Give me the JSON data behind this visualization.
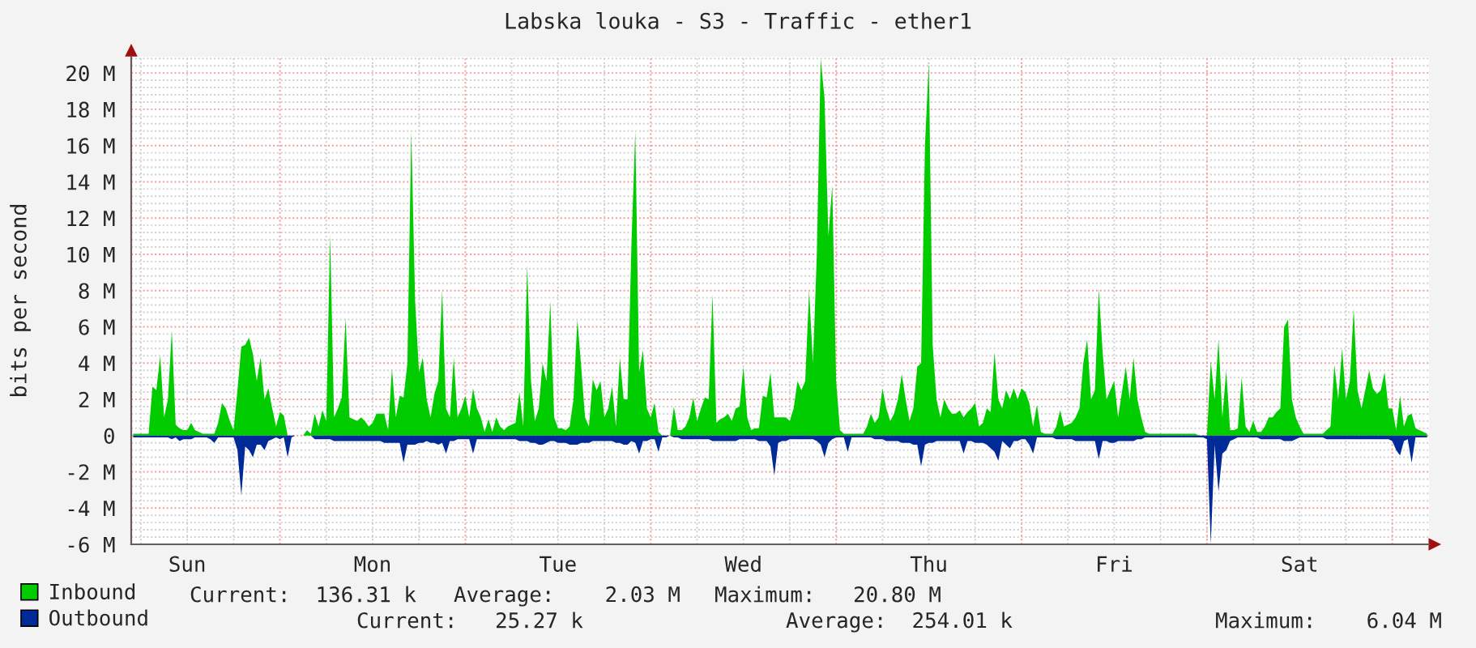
{
  "chart_data": {
    "type": "area",
    "title": "Labska louka - S3 - Traffic - ether1",
    "ylabel": "bits per second",
    "categories": [
      null,
      null,
      null,
      null,
      null,
      null,
      null,
      null,
      null,
      null,
      null,
      null,
      null,
      null,
      "Sun",
      null,
      null,
      null,
      null,
      null,
      null,
      null,
      null,
      null,
      null,
      null,
      null,
      null,
      null,
      null,
      null,
      null,
      null,
      null,
      null,
      null,
      null,
      null,
      null,
      null,
      null,
      null,
      null,
      null,
      null,
      null,
      null,
      null,
      null,
      null,
      null,
      null,
      null,
      null,
      null,
      null,
      null,
      null,
      null,
      null,
      null,
      null,
      "Mon",
      null,
      null,
      null,
      null,
      null,
      null,
      null,
      null,
      null,
      null,
      null,
      null,
      null,
      null,
      null,
      null,
      null,
      null,
      null,
      null,
      null,
      null,
      null,
      null,
      null,
      null,
      null,
      null,
      null,
      null,
      null,
      null,
      null,
      null,
      null,
      null,
      null,
      null,
      null,
      null,
      null,
      null,
      null,
      null,
      null,
      null,
      null,
      "Tue",
      null,
      null,
      null,
      null,
      null,
      null,
      null,
      null,
      null,
      null,
      null,
      null,
      null,
      null,
      null,
      null,
      null,
      null,
      null,
      null,
      null,
      null,
      null,
      null,
      null,
      null,
      null,
      null,
      null,
      null,
      null,
      null,
      null,
      null,
      null,
      null,
      null,
      null,
      null,
      null,
      null,
      null,
      null,
      null,
      null,
      null,
      null,
      "Wed",
      null,
      null,
      null,
      null,
      null,
      null,
      null,
      null,
      null,
      null,
      null,
      null,
      null,
      null,
      null,
      null,
      null,
      null,
      null,
      null,
      null,
      null,
      null,
      null,
      null,
      null,
      null,
      null,
      null,
      null,
      null,
      null,
      null,
      null,
      null,
      null,
      null,
      null,
      null,
      null,
      null,
      null,
      null,
      null,
      null,
      null,
      null,
      "Thu",
      null,
      null,
      null,
      null,
      null,
      null,
      null,
      null,
      null,
      null,
      null,
      null,
      null,
      null,
      null,
      null,
      null,
      null,
      null,
      null,
      null,
      null,
      null,
      null,
      null,
      null,
      null,
      null,
      null,
      null,
      null,
      null,
      null,
      null,
      null,
      null,
      null,
      null,
      null,
      null,
      null,
      null,
      null,
      null,
      null,
      null,
      null,
      "Fri",
      null,
      null,
      null,
      null,
      null,
      null,
      null,
      null,
      null,
      null,
      null,
      null,
      null,
      null,
      null,
      null,
      null,
      null,
      null,
      null,
      null,
      null,
      null,
      null,
      null,
      null,
      null,
      null,
      null,
      null,
      null,
      null,
      null,
      null,
      null,
      null,
      null,
      null,
      null,
      null,
      null,
      null,
      null,
      null,
      null,
      null,
      null,
      "Sat",
      null,
      null,
      null,
      null,
      null,
      null,
      null,
      null,
      null,
      null,
      null,
      null,
      null,
      null,
      null,
      null,
      null,
      null,
      null,
      null,
      null,
      null,
      null,
      null,
      null,
      null,
      null,
      null,
      null,
      null,
      null,
      null,
      null
    ],
    "ylim": [
      -6,
      20.9
    ],
    "yticks": [
      {
        "value": -6,
        "label": "-6 M"
      },
      {
        "value": -5.6,
        "label": null
      },
      {
        "value": -5.2,
        "label": null
      },
      {
        "value": -4.8,
        "label": null
      },
      {
        "value": -4.4,
        "label": null
      },
      {
        "value": -4,
        "label": "-4 M"
      },
      {
        "value": -3.6,
        "label": null
      },
      {
        "value": -3.2,
        "label": null
      },
      {
        "value": -2.8,
        "label": null
      },
      {
        "value": -2.4,
        "label": null
      },
      {
        "value": -2,
        "label": "-2 M"
      },
      {
        "value": -1.6,
        "label": null
      },
      {
        "value": -1.2,
        "label": null
      },
      {
        "value": -0.8,
        "label": null
      },
      {
        "value": -0.4,
        "label": null
      },
      {
        "value": 0,
        "label": "0"
      },
      {
        "value": 0.4,
        "label": null
      },
      {
        "value": 0.8,
        "label": null
      },
      {
        "value": 1.2,
        "label": null
      },
      {
        "value": 1.6,
        "label": null
      },
      {
        "value": 2,
        "label": "2 M"
      },
      {
        "value": 2.4,
        "label": null
      },
      {
        "value": 2.8,
        "label": null
      },
      {
        "value": 3.2,
        "label": null
      },
      {
        "value": 3.6,
        "label": null
      },
      {
        "value": 4,
        "label": "4 M"
      },
      {
        "value": 4.4,
        "label": null
      },
      {
        "value": 4.8,
        "label": null
      },
      {
        "value": 5.2,
        "label": null
      },
      {
        "value": 5.6,
        "label": null
      },
      {
        "value": 6,
        "label": "6 M"
      },
      {
        "value": 6.4,
        "label": null
      },
      {
        "value": 6.8,
        "label": null
      },
      {
        "value": 7.2,
        "label": null
      },
      {
        "value": 7.6,
        "label": null
      },
      {
        "value": 8,
        "label": "8 M"
      },
      {
        "value": 8.4,
        "label": null
      },
      {
        "value": 8.8,
        "label": null
      },
      {
        "value": 9.2,
        "label": null
      },
      {
        "value": 9.6,
        "label": null
      },
      {
        "value": 10,
        "label": "10 M"
      },
      {
        "value": 10.4,
        "label": null
      },
      {
        "value": 10.8,
        "label": null
      },
      {
        "value": 11.2,
        "label": null
      },
      {
        "value": 11.6,
        "label": null
      },
      {
        "value": 12,
        "label": "12 M"
      },
      {
        "value": 12.4,
        "label": null
      },
      {
        "value": 12.8,
        "label": null
      },
      {
        "value": 13.2,
        "label": null
      },
      {
        "value": 13.6,
        "label": null
      },
      {
        "value": 14,
        "label": "14 M"
      },
      {
        "value": 14.4,
        "label": null
      },
      {
        "value": 14.8,
        "label": null
      },
      {
        "value": 15.2,
        "label": null
      },
      {
        "value": 15.6,
        "label": null
      },
      {
        "value": 16,
        "label": "16 M"
      },
      {
        "value": 16.4,
        "label": null
      },
      {
        "value": 16.8,
        "label": null
      },
      {
        "value": 17.2,
        "label": null
      },
      {
        "value": 17.6,
        "label": null
      },
      {
        "value": 18,
        "label": "18 M"
      },
      {
        "value": 18.4,
        "label": null
      },
      {
        "value": 18.8,
        "label": null
      },
      {
        "value": 19.2,
        "label": null
      },
      {
        "value": 19.6,
        "label": null
      },
      {
        "value": 20,
        "label": "20 M"
      },
      {
        "value": 20.4,
        "label": null
      },
      {
        "value": 20.8,
        "label": null
      }
    ],
    "grid": true,
    "legend": "bottom",
    "series": [
      {
        "name": "Inbound",
        "color": "#00cc00",
        "values": [
          0.1,
          0.1,
          0.1,
          0.1,
          0.1,
          2.7,
          2.5,
          4.4,
          1.0,
          2.0,
          5.8,
          0.6,
          0.4,
          0.3,
          0.3,
          0.7,
          0.3,
          0.2,
          0.1,
          0.1,
          0.1,
          0.1,
          0.7,
          1.8,
          1.5,
          0.8,
          0.3,
          2.5,
          4.9,
          5.0,
          5.4,
          4.5,
          3.0,
          4.3,
          2.0,
          2.6,
          1.5,
          0.5,
          1.3,
          1.1,
          0.0,
          0.0,
          0.0,
          0.0,
          0.0,
          0.3,
          0.1,
          1.2,
          0.5,
          1.4,
          0.8,
          11.1,
          1.0,
          1.5,
          2.1,
          6.5,
          1.0,
          0.9,
          0.8,
          1.0,
          0.8,
          0.5,
          0.7,
          1.2,
          1.2,
          1.2,
          0.3,
          3.7,
          1.0,
          2.2,
          2.1,
          4.0,
          16.8,
          7.4,
          3.5,
          4.3,
          2.0,
          1.0,
          2.3,
          3.0,
          8.0,
          1.5,
          1.0,
          4.3,
          1.0,
          1.5,
          2.2,
          1.0,
          2.6,
          1.5,
          1.0,
          0.2,
          0.9,
          0.2,
          1.0,
          0.5,
          0.3,
          0.5,
          0.6,
          0.7,
          2.4,
          0.5,
          9.4,
          3.0,
          0.8,
          1.5,
          4.0,
          3.0,
          7.4,
          1.0,
          0.4,
          0.4,
          0.3,
          0.5,
          2.0,
          6.4,
          3.8,
          1.0,
          0.5,
          3.1,
          2.5,
          3.0,
          1.0,
          1.5,
          2.7,
          0.5,
          4.3,
          2.0,
          2.0,
          10.5,
          16.8,
          3.5,
          4.7,
          1.5,
          1.0,
          1.8,
          0.2,
          0.0,
          0.0,
          0.0,
          1.6,
          0.3,
          0.3,
          0.5,
          1.0,
          2.1,
          0.8,
          1.5,
          2.1,
          2.0,
          7.8,
          0.7,
          0.9,
          1.0,
          1.2,
          0.8,
          1.5,
          1.6,
          3.8,
          1.0,
          0.3,
          0.4,
          0.4,
          2.2,
          2.1,
          3.5,
          1.0,
          1.0,
          1.0,
          1.0,
          0.8,
          1.5,
          3.0,
          2.5,
          3.0,
          8.0,
          4.0,
          10.0,
          20.8,
          18.6,
          11.0,
          13.8,
          3.0,
          0.3,
          0.1,
          0.1,
          0.1,
          0.1,
          0.1,
          0.1,
          0.5,
          1.2,
          0.7,
          1.0,
          2.6,
          1.5,
          0.8,
          1.2,
          2.0,
          3.4,
          2.0,
          0.8,
          1.5,
          3.8,
          4.0,
          16.0,
          20.6,
          5.0,
          2.0,
          1.0,
          2.0,
          1.5,
          1.2,
          1.2,
          1.4,
          1.0,
          1.3,
          1.5,
          1.8,
          0.5,
          0.7,
          1.5,
          1.3,
          4.6,
          2.0,
          1.5,
          2.5,
          2.0,
          2.6,
          2.0,
          2.6,
          2.4,
          1.8,
          0.5,
          1.7,
          0.2,
          0.1,
          0.1,
          0.1,
          0.5,
          1.4,
          0.5,
          0.6,
          0.7,
          1.0,
          1.5,
          4.0,
          5.3,
          2.0,
          2.5,
          8.1,
          4.6,
          2.0,
          2.5,
          3.0,
          1.0,
          2.4,
          3.8,
          2.0,
          4.3,
          2.0,
          1.0,
          0.2,
          0.1,
          0.1,
          0.1,
          0.1,
          0.1,
          0.1,
          0.1,
          0.1,
          0.1,
          0.1,
          0.1,
          0.1,
          0.1,
          0.0,
          0.0,
          0.0,
          4.1,
          2.0,
          5.3,
          1.0,
          3.6,
          0.3,
          0.3,
          0.4,
          3.2,
          0.5,
          0.2,
          0.8,
          0.2,
          0.2,
          0.5,
          1.0,
          1.0,
          1.3,
          1.5,
          6.0,
          6.4,
          2.0,
          1.0,
          0.5,
          0.1,
          0.1,
          0.1,
          0.1,
          0.1,
          0.1,
          0.3,
          0.5,
          3.9,
          2.0,
          4.8,
          2.0,
          3.0,
          7.0,
          2.5,
          1.5,
          2.5,
          3.6,
          2.6,
          2.3,
          2.5,
          3.5,
          1.5,
          1.5,
          0.3,
          2.2,
          0.5,
          1.1,
          1.2,
          0.4,
          0.3,
          0.2,
          0.1
        ]
      },
      {
        "name": "Outbound",
        "color": "#002a97",
        "values": [
          -0.1,
          -0.1,
          -0.1,
          -0.1,
          -0.1,
          -0.1,
          -0.1,
          -0.1,
          -0.1,
          -0.1,
          -0.2,
          -0.1,
          -0.3,
          -0.2,
          -0.2,
          -0.2,
          -0.1,
          -0.1,
          -0.1,
          -0.1,
          -0.2,
          -0.4,
          -0.1,
          -0.1,
          -0.1,
          -0.1,
          -0.1,
          -0.8,
          -3.3,
          -0.6,
          -0.8,
          -1.2,
          -0.5,
          -0.5,
          -0.8,
          -0.3,
          -0.2,
          -0.1,
          -0.2,
          -0.1,
          -1.2,
          -0.1,
          0.0,
          0.0,
          0.0,
          0.0,
          0.0,
          -0.2,
          -0.2,
          -0.2,
          -0.2,
          -0.2,
          -0.3,
          -0.3,
          -0.3,
          -0.3,
          -0.3,
          -0.3,
          -0.3,
          -0.3,
          -0.3,
          -0.3,
          -0.3,
          -0.3,
          -0.3,
          -0.4,
          -0.4,
          -0.4,
          -0.4,
          -0.4,
          -1.5,
          -0.5,
          -0.5,
          -0.5,
          -0.4,
          -0.4,
          -0.3,
          -0.4,
          -0.4,
          -0.5,
          -0.4,
          -1.0,
          -0.3,
          -0.3,
          -0.2,
          -0.2,
          -0.2,
          -0.2,
          -1.0,
          -0.2,
          -0.2,
          -0.2,
          -0.2,
          -0.2,
          -0.2,
          -0.2,
          -0.2,
          -0.2,
          -0.2,
          -0.2,
          -0.3,
          -0.3,
          -0.3,
          -0.4,
          -0.4,
          -0.5,
          -0.5,
          -0.4,
          -0.3,
          -0.3,
          -0.4,
          -0.4,
          -0.4,
          -0.5,
          -0.5,
          -0.5,
          -0.4,
          -0.4,
          -0.4,
          -0.3,
          -0.3,
          -0.3,
          -0.3,
          -0.3,
          -0.3,
          -0.4,
          -0.4,
          -0.5,
          -0.5,
          -0.3,
          -0.4,
          -1.0,
          -0.3,
          -0.3,
          -0.2,
          -0.2,
          -0.9,
          -0.1,
          -0.1,
          0.0,
          -0.1,
          -0.1,
          -0.2,
          -0.2,
          -0.2,
          -0.2,
          -0.2,
          -0.2,
          -0.2,
          -0.2,
          -0.3,
          -0.3,
          -0.3,
          -0.3,
          -0.3,
          -0.3,
          -0.3,
          -0.2,
          -0.2,
          -0.2,
          -0.2,
          -0.2,
          -0.3,
          -0.3,
          -0.3,
          -0.6,
          -2.2,
          -0.4,
          -0.3,
          -0.3,
          -0.2,
          -0.2,
          -0.2,
          -0.2,
          -0.2,
          -0.2,
          -0.2,
          -0.3,
          -0.5,
          -1.2,
          -0.4,
          -0.2,
          -0.1,
          -0.1,
          -0.1,
          -0.9,
          -0.1,
          -0.1,
          -0.1,
          -0.1,
          -0.1,
          -0.1,
          -0.2,
          -0.2,
          -0.2,
          -0.3,
          -0.3,
          -0.3,
          -0.3,
          -0.4,
          -0.4,
          -0.4,
          -0.5,
          -0.5,
          -1.7,
          -0.5,
          -0.4,
          -0.4,
          -0.3,
          -0.3,
          -0.3,
          -0.3,
          -0.3,
          -0.3,
          -0.3,
          -1.0,
          -0.3,
          -0.3,
          -0.4,
          -0.4,
          -0.4,
          -0.5,
          -0.7,
          -0.9,
          -1.4,
          -0.3,
          -0.5,
          -0.7,
          -0.3,
          -0.3,
          -0.2,
          -0.2,
          -0.5,
          -1.0,
          -0.1,
          -0.1,
          -0.1,
          -0.1,
          -0.1,
          -0.2,
          -0.2,
          -0.2,
          -0.2,
          -0.2,
          -0.3,
          -0.3,
          -0.3,
          -0.3,
          -0.3,
          -0.3,
          -1.3,
          -0.3,
          -0.3,
          -0.4,
          -0.4,
          -0.3,
          -0.3,
          -0.3,
          -0.3,
          -0.3,
          -0.2,
          -0.2,
          -0.1,
          -0.1,
          -0.1,
          -0.1,
          -0.1,
          -0.1,
          -0.1,
          -0.1,
          -0.1,
          -0.1,
          -0.1,
          -0.1,
          -0.1,
          -0.1,
          -0.1,
          -0.1,
          -0.2,
          -6.0,
          -0.5,
          -3.1,
          -1.0,
          -0.8,
          -0.3,
          -0.2,
          -0.1,
          -0.1,
          -0.1,
          -0.1,
          -0.1,
          -0.1,
          -0.2,
          -0.2,
          -0.2,
          -0.2,
          -0.2,
          -0.2,
          -0.3,
          -0.3,
          -0.3,
          -0.2,
          -0.1,
          -0.1,
          -0.1,
          -0.1,
          -0.1,
          -0.1,
          -0.1,
          -0.2,
          -0.2,
          -0.2,
          -0.2,
          -0.2,
          -0.2,
          -0.2,
          -0.2,
          -0.2,
          -0.2,
          -0.2,
          -0.2,
          -0.2,
          -0.2,
          -0.2,
          -0.2,
          -0.2,
          -0.3,
          -0.8,
          -1.1,
          -0.3,
          -0.2,
          -1.5,
          -0.1,
          -0.1,
          -0.1,
          -0.1
        ]
      }
    ],
    "annotations": [
      "Current:  136.31 k",
      "Average:    2.03 M",
      "Maximum:   20.80 M",
      "Current:   25.27 k",
      "Average:  254.01 k",
      "Maximum:    6.04 M"
    ]
  }
}
